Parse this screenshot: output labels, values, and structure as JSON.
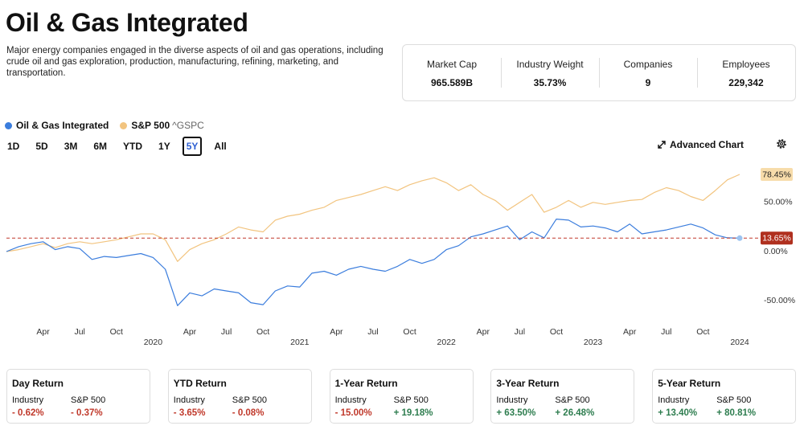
{
  "header": {
    "title": "Oil & Gas Integrated",
    "description": "Major energy companies engaged in the diverse aspects of oil and gas operations, including crude oil and gas exploration, production, manufacturing, refining, marketing, and transportation."
  },
  "stats": [
    {
      "label": "Market Cap",
      "value": "965.589B"
    },
    {
      "label": "Industry Weight",
      "value": "35.73%"
    },
    {
      "label": "Companies",
      "value": "9"
    },
    {
      "label": "Employees",
      "value": "229,342"
    }
  ],
  "toolbar": {
    "ranges": [
      "1D",
      "5D",
      "3M",
      "6M",
      "YTD",
      "1Y",
      "5Y",
      "All"
    ],
    "selected": 6,
    "advanced_chart": "Advanced Chart"
  },
  "chart_data": {
    "type": "line",
    "x": [
      "2019-01",
      "2019-02",
      "2019-03",
      "2019-04",
      "2019-05",
      "2019-06",
      "2019-07",
      "2019-08",
      "2019-09",
      "2019-10",
      "2019-11",
      "2019-12",
      "2020-01",
      "2020-02",
      "2020-03",
      "2020-04",
      "2020-05",
      "2020-06",
      "2020-07",
      "2020-08",
      "2020-09",
      "2020-10",
      "2020-11",
      "2020-12",
      "2021-01",
      "2021-02",
      "2021-03",
      "2021-04",
      "2021-05",
      "2021-06",
      "2021-07",
      "2021-08",
      "2021-09",
      "2021-10",
      "2021-11",
      "2021-12",
      "2022-01",
      "2022-02",
      "2022-03",
      "2022-04",
      "2022-05",
      "2022-06",
      "2022-07",
      "2022-08",
      "2022-09",
      "2022-10",
      "2022-11",
      "2022-12",
      "2023-01",
      "2023-02",
      "2023-03",
      "2023-04",
      "2023-05",
      "2023-06",
      "2023-07",
      "2023-08",
      "2023-09",
      "2023-10",
      "2023-11",
      "2023-12",
      "2024-01"
    ],
    "series": [
      {
        "name": "Oil & Gas Integrated",
        "color": "#3b7ddd",
        "last_label": "13.65%",
        "values": [
          0,
          5,
          8,
          10,
          2,
          5,
          3,
          -8,
          -5,
          -6,
          -4,
          -2,
          -6,
          -18,
          -55,
          -42,
          -45,
          -38,
          -40,
          -42,
          -52,
          -54,
          -40,
          -35,
          -36,
          -22,
          -20,
          -24,
          -18,
          -15,
          -18,
          -20,
          -15,
          -8,
          -12,
          -8,
          2,
          6,
          15,
          18,
          22,
          26,
          12,
          20,
          14,
          33,
          32,
          25,
          26,
          24,
          20,
          28,
          18,
          20,
          22,
          25,
          28,
          24,
          17,
          14,
          13.65
        ]
      },
      {
        "name": "S&P 500",
        "symbol": "^GSPC",
        "color": "#f2c47f",
        "last_label": "78.45%",
        "values": [
          0,
          2,
          5,
          8,
          4,
          8,
          10,
          8,
          10,
          12,
          15,
          18,
          18,
          12,
          -10,
          2,
          8,
          12,
          18,
          25,
          22,
          20,
          32,
          36,
          38,
          42,
          45,
          52,
          55,
          58,
          62,
          66,
          62,
          68,
          72,
          75,
          70,
          62,
          68,
          58,
          52,
          42,
          50,
          58,
          40,
          45,
          52,
          45,
          50,
          48,
          50,
          52,
          53,
          60,
          65,
          62,
          56,
          52,
          62,
          73,
          78.45
        ]
      }
    ],
    "ylim": [
      -67,
      85
    ],
    "yticks": [
      {
        "value": 50,
        "label": "50.00%"
      },
      {
        "value": 0,
        "label": "0.00%"
      },
      {
        "value": -50,
        "label": "-50.00%"
      }
    ],
    "xticks": [
      {
        "value": "2019-04",
        "label": "Apr"
      },
      {
        "value": "2019-07",
        "label": "Jul"
      },
      {
        "value": "2019-10",
        "label": "Oct"
      },
      {
        "value": "2020-01",
        "label": "2020"
      },
      {
        "value": "2020-04",
        "label": "Apr"
      },
      {
        "value": "2020-07",
        "label": "Jul"
      },
      {
        "value": "2020-10",
        "label": "Oct"
      },
      {
        "value": "2021-01",
        "label": "2021"
      },
      {
        "value": "2021-04",
        "label": "Apr"
      },
      {
        "value": "2021-07",
        "label": "Jul"
      },
      {
        "value": "2021-10",
        "label": "Oct"
      },
      {
        "value": "2022-01",
        "label": "2022"
      },
      {
        "value": "2022-04",
        "label": "Apr"
      },
      {
        "value": "2022-07",
        "label": "Jul"
      },
      {
        "value": "2022-10",
        "label": "Oct"
      },
      {
        "value": "2023-01",
        "label": "2023"
      },
      {
        "value": "2023-04",
        "label": "Apr"
      },
      {
        "value": "2023-07",
        "label": "Jul"
      },
      {
        "value": "2023-10",
        "label": "Oct"
      },
      {
        "value": "2024-01",
        "label": "2024"
      }
    ],
    "grid": false
  },
  "returns": [
    {
      "title": "Day Return",
      "industry_label": "Industry",
      "sp_label": "S&P 500",
      "industry": "- 0.62%",
      "sp": "- 0.37%"
    },
    {
      "title": "YTD Return",
      "industry_label": "Industry",
      "sp_label": "S&P 500",
      "industry": "- 3.65%",
      "sp": "- 0.08%"
    },
    {
      "title": "1-Year Return",
      "industry_label": "Industry",
      "sp_label": "S&P 500",
      "industry": "- 15.00%",
      "sp": "+ 19.18%"
    },
    {
      "title": "3-Year Return",
      "industry_label": "Industry",
      "sp_label": "S&P 500",
      "industry": "+ 63.50%",
      "sp": "+ 26.48%"
    },
    {
      "title": "5-Year Return",
      "industry_label": "Industry",
      "sp_label": "S&P 500",
      "industry": "+ 13.40%",
      "sp": "+ 80.81%"
    }
  ]
}
